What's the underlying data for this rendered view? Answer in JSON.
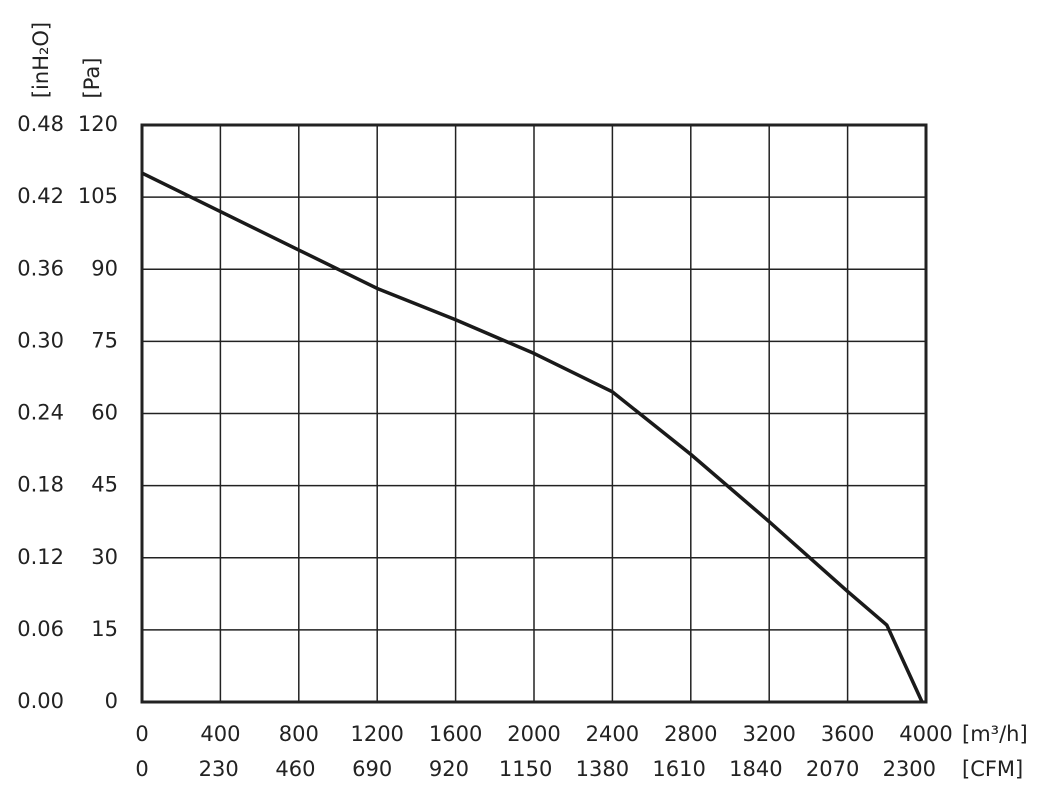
{
  "chart_data": {
    "type": "line",
    "x_label": "[m³/h]",
    "x2_label": "[CFM]",
    "y_label": "[Pa]",
    "y2_label": "[inH₂O]",
    "x": [
      0,
      400,
      800,
      1200,
      1600,
      2000,
      2400,
      2800,
      3200,
      3600,
      3800,
      3980
    ],
    "series": [
      {
        "color": "#1a1a1a",
        "values": [
          110,
          102,
          94,
          86,
          79.5,
          72.5,
          64.5,
          51.5,
          37.5,
          23,
          16,
          0
        ]
      }
    ],
    "xlim": [
      0,
      4000
    ],
    "xticks": [
      0,
      400,
      800,
      1200,
      1600,
      2000,
      2400,
      2800,
      3200,
      3600,
      4000
    ],
    "x2lim": [
      0,
      2350
    ],
    "x2ticks": [
      0,
      230,
      460,
      690,
      920,
      1150,
      1380,
      1610,
      1840,
      2070,
      2300
    ],
    "ylim": [
      0,
      120
    ],
    "yticks": [
      0,
      15,
      30,
      45,
      60,
      75,
      90,
      105,
      120
    ],
    "y2lim": [
      0,
      0.48
    ],
    "y2ticks": [
      {
        "value": 0,
        "label": "0.00"
      },
      0.06,
      0.12,
      0.18,
      0.24,
      {
        "value": 0.3,
        "label": "0.30"
      },
      0.36,
      0.42,
      0.48
    ],
    "grid": true
  }
}
